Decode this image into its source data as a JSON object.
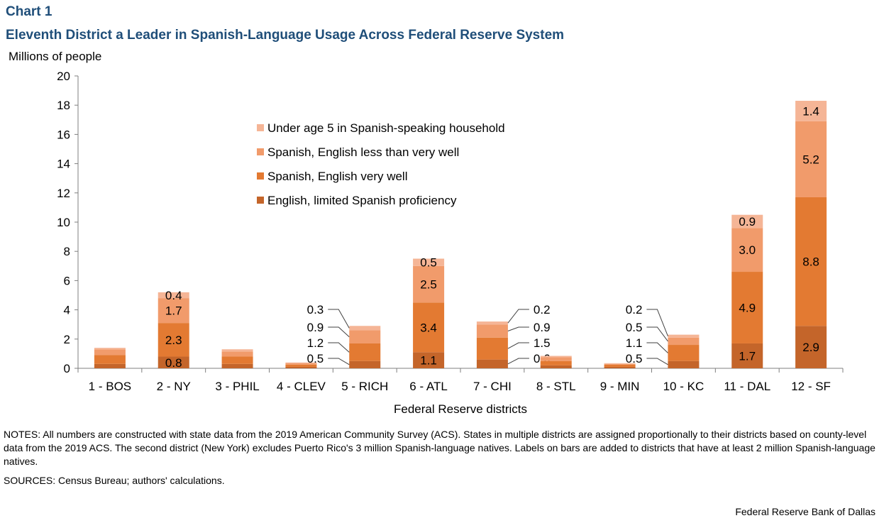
{
  "header": {
    "chart_label": "Chart 1",
    "title": "Eleventh District a Leader in Spanish-Language Usage Across Federal Reserve System"
  },
  "chart_data": {
    "type": "bar",
    "stacked": true,
    "title": "Eleventh District a Leader in Spanish-Language Usage Across Federal Reserve System",
    "xlabel": "Federal Reserve districts",
    "ylabel": "Millions of people",
    "ylim": [
      0,
      20
    ],
    "yticks": [
      0,
      2,
      4,
      6,
      8,
      10,
      12,
      14,
      16,
      18,
      20
    ],
    "grid": false,
    "legend_position": "top-center",
    "categories": [
      "1 - BOS",
      "2 - NY",
      "3 - PHIL",
      "4 - CLEV",
      "5 - RICH",
      "6 - ATL",
      "7 - CHI",
      "8 - STL",
      "9 - MIN",
      "10 - KC",
      "11 - DAL",
      "12 - SF"
    ],
    "series": [
      {
        "name": "English, limited Spanish proficiency",
        "color": "#c4652a",
        "values": [
          0.3,
          0.8,
          0.3,
          0.1,
          0.5,
          1.1,
          0.6,
          0.2,
          0.1,
          0.5,
          1.7,
          2.9
        ],
        "labels": [
          "",
          "0.8",
          "",
          "",
          "0.5",
          "1.1",
          "0.6",
          "",
          "",
          "0.5",
          "1.7",
          "2.9"
        ]
      },
      {
        "name": "Spanish, English very well",
        "color": "#e37a32",
        "values": [
          0.6,
          2.3,
          0.5,
          0.15,
          1.2,
          3.4,
          1.5,
          0.3,
          0.15,
          1.1,
          4.9,
          8.8
        ],
        "labels": [
          "",
          "2.3",
          "",
          "",
          "1.2",
          "3.4",
          "1.5",
          "",
          "",
          "1.1",
          "4.9",
          "8.8"
        ]
      },
      {
        "name": "Spanish, English less than very well",
        "color": "#f19b6b",
        "values": [
          0.4,
          1.7,
          0.35,
          0.1,
          0.9,
          2.5,
          0.9,
          0.25,
          0.05,
          0.5,
          3.0,
          5.2
        ],
        "labels": [
          "",
          "1.7",
          "",
          "",
          "0.9",
          "2.5",
          "0.9",
          "",
          "",
          "0.5",
          "3.0",
          "5.2"
        ]
      },
      {
        "name": "Under age 5 in Spanish-speaking household",
        "color": "#f5b596",
        "values": [
          0.1,
          0.4,
          0.15,
          0.05,
          0.3,
          0.5,
          0.2,
          0.1,
          0.05,
          0.2,
          0.9,
          1.4
        ],
        "labels": [
          "",
          "0.4",
          "",
          "",
          "0.3",
          "0.5",
          "0.2",
          "",
          "",
          "0.2",
          "0.9",
          "1.4"
        ]
      }
    ]
  },
  "notes": "NOTES: All numbers are constructed with state data from the 2019 American Community Survey (ACS). States in multiple districts are assigned proportionally to their districts based on county-level data from the 2019 ACS. The second district (New York) excludes Puerto Rico's 3 million Spanish-language natives. Labels on bars are added to districts that have at least 2 million Spanish-language natives.",
  "sources": "SOURCES: Census Bureau; authors' calculations.",
  "footer": "Federal Reserve Bank of Dallas"
}
